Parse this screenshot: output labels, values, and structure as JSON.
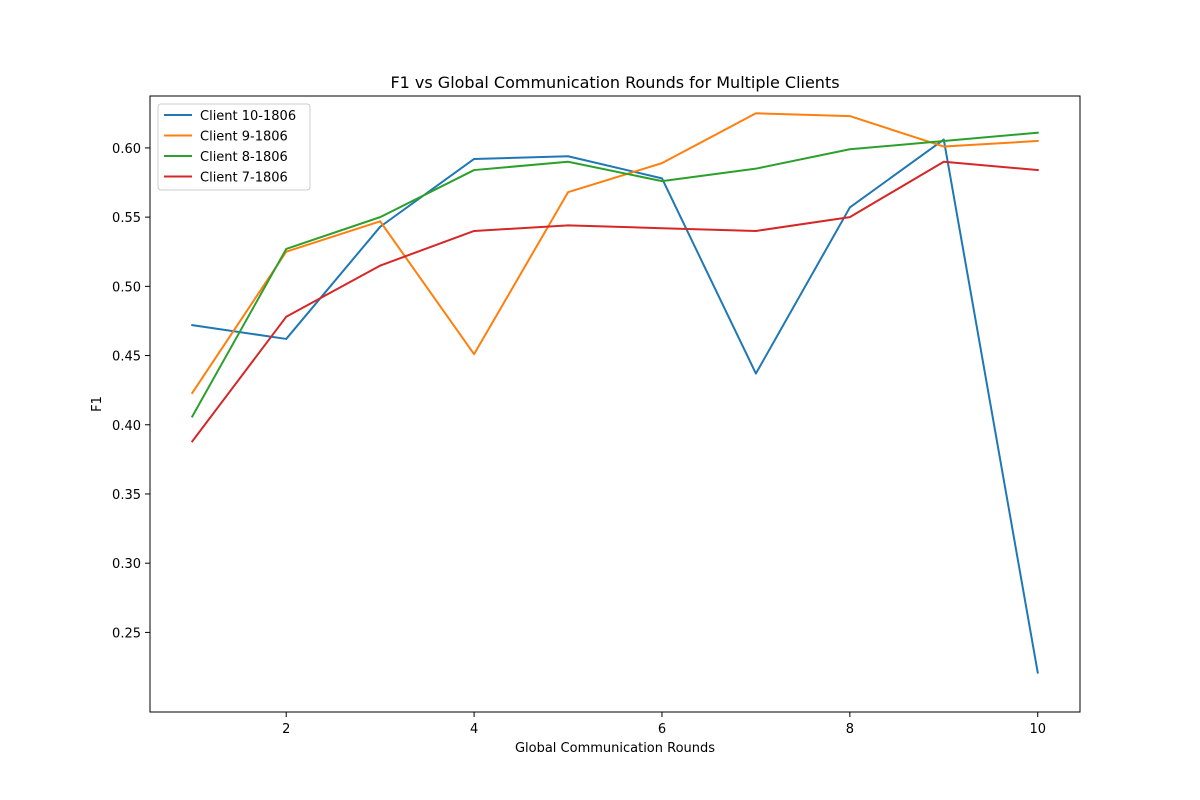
{
  "chart_data": {
    "type": "line",
    "title": "F1 vs Global Communication Rounds for Multiple Clients",
    "xlabel": "Global Communication Rounds",
    "ylabel": "F1",
    "xlim": [
      0.55,
      10.45
    ],
    "ylim": [
      0.1925,
      0.6375
    ],
    "x_ticks": [
      2,
      4,
      6,
      8,
      10
    ],
    "y_ticks": [
      0.25,
      0.3,
      0.35,
      0.4,
      0.45,
      0.5,
      0.55,
      0.6
    ],
    "y_tick_labels": [
      "0.25",
      "0.30",
      "0.35",
      "0.40",
      "0.45",
      "0.50",
      "0.55",
      "0.60"
    ],
    "x_tick_labels": [
      "2",
      "4",
      "6",
      "8",
      "10"
    ],
    "grid": false,
    "legend_position": "top-left",
    "x": [
      1,
      2,
      3,
      4,
      5,
      6,
      7,
      8,
      9,
      10
    ],
    "series": [
      {
        "name": "Client 10-1806",
        "color": "#1f77b4",
        "values": [
          0.472,
          0.462,
          0.543,
          0.592,
          0.594,
          0.578,
          0.437,
          0.557,
          0.606,
          0.221
        ]
      },
      {
        "name": "Client 9-1806",
        "color": "#ff7f0e",
        "values": [
          0.423,
          0.525,
          0.547,
          0.451,
          0.568,
          0.589,
          0.625,
          0.623,
          0.601,
          0.605
        ]
      },
      {
        "name": "Client 8-1806",
        "color": "#2ca02c",
        "values": [
          0.406,
          0.527,
          0.55,
          0.584,
          0.59,
          0.576,
          0.585,
          0.599,
          0.605,
          0.611
        ]
      },
      {
        "name": "Client 7-1806",
        "color": "#d62728",
        "values": [
          0.388,
          0.478,
          0.515,
          0.54,
          0.544,
          0.542,
          0.54,
          0.55,
          0.59,
          0.584
        ]
      }
    ]
  }
}
